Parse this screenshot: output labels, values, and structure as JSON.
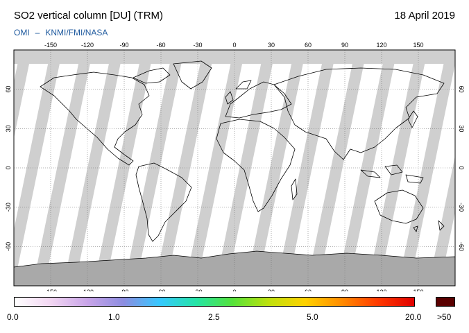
{
  "header": {
    "title": "SO2 vertical column [DU] (TRM)",
    "date": "18 April 2019",
    "credit_left": "OMI",
    "credit_sep": "–",
    "credit_right": "KNMI/FMI/NASA"
  },
  "map": {
    "lon_ticks": [
      "-150",
      "-120",
      "-90",
      "-60",
      "-30",
      "0",
      "30",
      "60",
      "90",
      "120",
      "150"
    ],
    "lat_ticks": [
      "60",
      "30",
      "0",
      "-30",
      "-60"
    ],
    "colors": {
      "background_no_data": "#cfcfcf",
      "swath": "#ffffff",
      "gap_dark": "#a9a9a9",
      "coast": "#000000"
    }
  },
  "colorbar": {
    "labels": [
      "0.0",
      "1.0",
      "2.5",
      "5.0",
      "20.0"
    ],
    "over_label": ">50",
    "over_color": "#5a0000",
    "gradient": [
      "#ffffff",
      "#f2d6f2",
      "#c9a5e8",
      "#8d8de0",
      "#36c8ff",
      "#25e4a6",
      "#55e23a",
      "#bfe10d",
      "#ffd200",
      "#ff8c00",
      "#ff3a00",
      "#e00000"
    ]
  }
}
